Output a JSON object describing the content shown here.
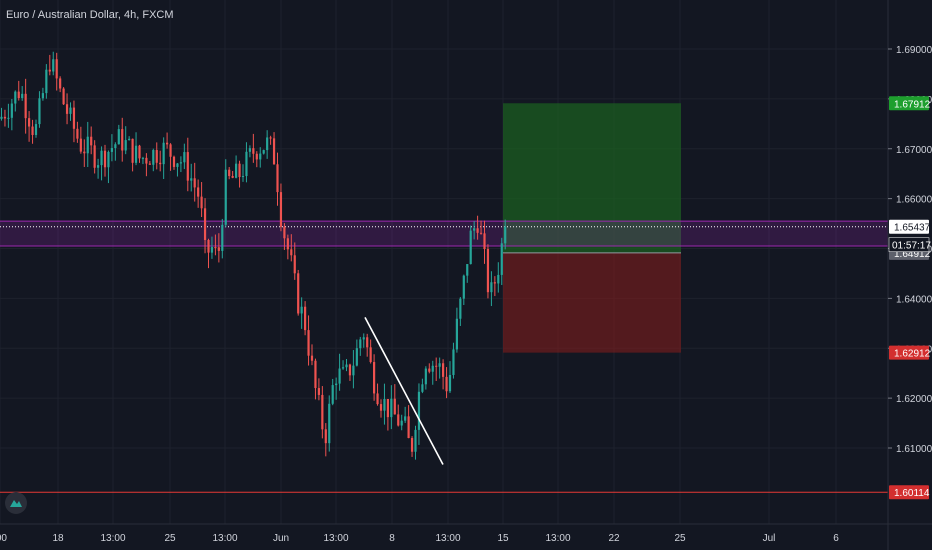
{
  "chart_data": {
    "type": "candlestick",
    "title": "Euro / Australian Dollar, 4h, FXCM",
    "y_range": [
      1.591,
      1.699
    ],
    "y_ticks": [
      1.69,
      1.68,
      1.67,
      1.66,
      1.65,
      1.64,
      1.63,
      1.62,
      1.61
    ],
    "y_tick_labels": [
      "1.69000",
      "1.68000",
      "1.67000",
      "1.66000",
      "1.65000",
      "1.64000",
      "1.63000",
      "1.62000",
      "1.61000"
    ],
    "x_labels": [
      {
        "label": ":00",
        "x": 0
      },
      {
        "label": "18",
        "x": 58
      },
      {
        "label": "13:00",
        "x": 113
      },
      {
        "label": "25",
        "x": 170
      },
      {
        "label": "13:00",
        "x": 225
      },
      {
        "label": "Jun",
        "x": 281
      },
      {
        "label": "13:00",
        "x": 336
      },
      {
        "label": "8",
        "x": 392
      },
      {
        "label": "13:00",
        "x": 448
      },
      {
        "label": "15",
        "x": 503
      },
      {
        "label": "13:00",
        "x": 558
      },
      {
        "label": "22",
        "x": 614
      },
      {
        "label": "25",
        "x": 680
      },
      {
        "label": "Jul",
        "x": 769
      },
      {
        "label": "6",
        "x": 836
      }
    ],
    "key_points": [
      [
        0,
        1.676
      ],
      [
        20,
        1.682
      ],
      [
        35,
        1.673
      ],
      [
        50,
        1.688
      ],
      [
        62,
        1.68
      ],
      [
        80,
        1.671
      ],
      [
        100,
        1.668
      ],
      [
        120,
        1.672
      ],
      [
        140,
        1.668
      ],
      [
        165,
        1.67
      ],
      [
        185,
        1.667
      ],
      [
        200,
        1.66
      ],
      [
        205,
        1.649
      ],
      [
        212,
        1.65
      ],
      [
        218,
        1.648
      ],
      [
        225,
        1.663
      ],
      [
        240,
        1.665
      ],
      [
        255,
        1.67
      ],
      [
        268,
        1.671
      ],
      [
        275,
        1.668
      ],
      [
        282,
        1.655
      ],
      [
        290,
        1.648
      ],
      [
        297,
        1.64
      ],
      [
        305,
        1.635
      ],
      [
        315,
        1.622
      ],
      [
        325,
        1.612
      ],
      [
        335,
        1.625
      ],
      [
        345,
        1.624
      ],
      [
        355,
        1.628
      ],
      [
        363,
        1.634
      ],
      [
        372,
        1.625
      ],
      [
        380,
        1.62
      ],
      [
        392,
        1.617
      ],
      [
        405,
        1.614
      ],
      [
        411,
        1.609
      ],
      [
        418,
        1.62
      ],
      [
        425,
        1.628
      ],
      [
        440,
        1.626
      ],
      [
        448,
        1.622
      ],
      [
        455,
        1.632
      ],
      [
        463,
        1.642
      ],
      [
        470,
        1.652
      ],
      [
        478,
        1.656
      ],
      [
        484,
        1.648
      ],
      [
        490,
        1.64
      ],
      [
        497,
        1.645
      ],
      [
        503,
        1.652
      ],
      [
        507,
        1.6545
      ]
    ],
    "last_price": 1.65437,
    "countdown": "01:57:17",
    "horizontal_lines": [
      {
        "price": 1.6555,
        "color": "#9c27b0"
      },
      {
        "price": 1.6505,
        "color": "#9c27b0"
      },
      {
        "price": 1.60114,
        "color": "#e53935"
      }
    ],
    "trendline": {
      "start": [
        365,
        1.6362
      ],
      "end": [
        443,
        1.6067
      ],
      "color": "#ffffff"
    },
    "position": {
      "type": "long",
      "x_start": 503,
      "x_end": 681,
      "take_profit": 1.67912,
      "entry": 1.64912,
      "stop_loss": 1.62912,
      "profit_color": "#1b5e20",
      "loss_color": "#7f1d1d"
    },
    "price_labels": [
      {
        "text": "1.67912",
        "price": 1.67912,
        "bg": "#1e9f2e",
        "fg": "#ffffff"
      },
      {
        "text": "1.65437",
        "price": 1.65437,
        "bg": "#ffffff",
        "fg": "#131722"
      },
      {
        "text": "1.64912",
        "price": 1.64912,
        "bg": "#5d606b",
        "fg": "#ffffff"
      },
      {
        "text": "1.62912",
        "price": 1.62912,
        "bg": "#d32f2f",
        "fg": "#ffffff"
      },
      {
        "text": "1.60114",
        "price": 1.60114,
        "bg": "#d32f2f",
        "fg": "#ffffff"
      }
    ],
    "colors": {
      "background": "#131722",
      "up": "#26a69a",
      "down": "#ef5350",
      "grid": "#1e222d",
      "axis_text": "#d1d4dc"
    }
  }
}
